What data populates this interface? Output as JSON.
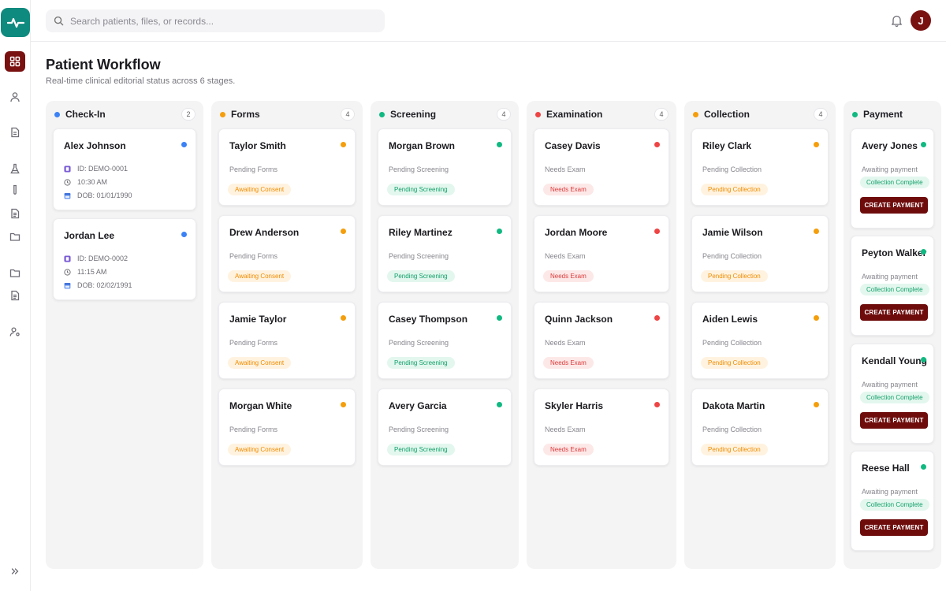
{
  "search": {
    "placeholder": "Search patients, files, or records..."
  },
  "user": {
    "initial": "J"
  },
  "page": {
    "title": "Patient Workflow",
    "subtitle": "Real-time clinical editorial status across 6 stages."
  },
  "colors": {
    "brand": "#0f8a7e",
    "accent": "#7a1111",
    "blue": "#3b82f6",
    "orange": "#f59e0b",
    "green": "#10b981",
    "red": "#ef4444"
  },
  "sidebar": {
    "icons": [
      "dashboard-icon",
      "user-icon",
      "document-icon",
      "flask-icon",
      "test-tube-icon",
      "file-text-icon",
      "folder-icon",
      "folder-icon",
      "file-text-icon",
      "user-settings-icon",
      "chevrons-right-icon"
    ]
  },
  "columns": [
    {
      "title": "Check-In",
      "count": "2",
      "cards": [
        {
          "name": "Alex Johnson",
          "id": "ID: DEMO-0001",
          "time": "10:30 AM",
          "dob": "DOB: 01/01/1990"
        },
        {
          "name": "Jordan Lee",
          "id": "ID: DEMO-0002",
          "time": "11:15 AM",
          "dob": "DOB: 02/02/1991"
        }
      ]
    },
    {
      "title": "Forms",
      "count": "4",
      "cards": [
        {
          "name": "Taylor Smith",
          "status": "Pending Forms",
          "badge": "Awaiting Consent"
        },
        {
          "name": "Drew Anderson",
          "status": "Pending Forms",
          "badge": "Awaiting Consent"
        },
        {
          "name": "Jamie Taylor",
          "status": "Pending Forms",
          "badge": "Awaiting Consent"
        },
        {
          "name": "Morgan White",
          "status": "Pending Forms",
          "badge": "Awaiting Consent"
        }
      ]
    },
    {
      "title": "Screening",
      "count": "4",
      "cards": [
        {
          "name": "Morgan Brown",
          "status": "Pending Screening",
          "badge": "Pending Screening"
        },
        {
          "name": "Riley Martinez",
          "status": "Pending Screening",
          "badge": "Pending Screening"
        },
        {
          "name": "Casey Thompson",
          "status": "Pending Screening",
          "badge": "Pending Screening"
        },
        {
          "name": "Avery Garcia",
          "status": "Pending Screening",
          "badge": "Pending Screening"
        }
      ]
    },
    {
      "title": "Examination",
      "count": "4",
      "cards": [
        {
          "name": "Casey Davis",
          "status": "Needs Exam",
          "badge": "Needs Exam"
        },
        {
          "name": "Jordan Moore",
          "status": "Needs Exam",
          "badge": "Needs Exam"
        },
        {
          "name": "Quinn Jackson",
          "status": "Needs Exam",
          "badge": "Needs Exam"
        },
        {
          "name": "Skyler Harris",
          "status": "Needs Exam",
          "badge": "Needs Exam"
        }
      ]
    },
    {
      "title": "Collection",
      "count": "4",
      "cards": [
        {
          "name": "Riley Clark",
          "status": "Pending Collection",
          "badge": "Pending Collection"
        },
        {
          "name": "Jamie Wilson",
          "status": "Pending Collection",
          "badge": "Pending Collection"
        },
        {
          "name": "Aiden Lewis",
          "status": "Pending Collection",
          "badge": "Pending Collection"
        },
        {
          "name": "Dakota Martin",
          "status": "Pending Collection",
          "badge": "Pending Collection"
        }
      ]
    },
    {
      "title": "Payment",
      "cards": [
        {
          "name": "Avery Jones",
          "status": "Awaiting payment",
          "badge": "Collection Complete",
          "button": "CREATE PAYMENT"
        },
        {
          "name": "Peyton Walker",
          "status": "Awaiting payment",
          "badge": "Collection Complete",
          "button": "CREATE PAYMENT"
        },
        {
          "name": "Kendall Young",
          "status": "Awaiting payment",
          "badge": "Collection Complete",
          "button": "CREATE PAYMENT"
        },
        {
          "name": "Reese Hall",
          "status": "Awaiting payment",
          "badge": "Collection Complete",
          "button": "CREATE PAYMENT"
        }
      ]
    }
  ]
}
